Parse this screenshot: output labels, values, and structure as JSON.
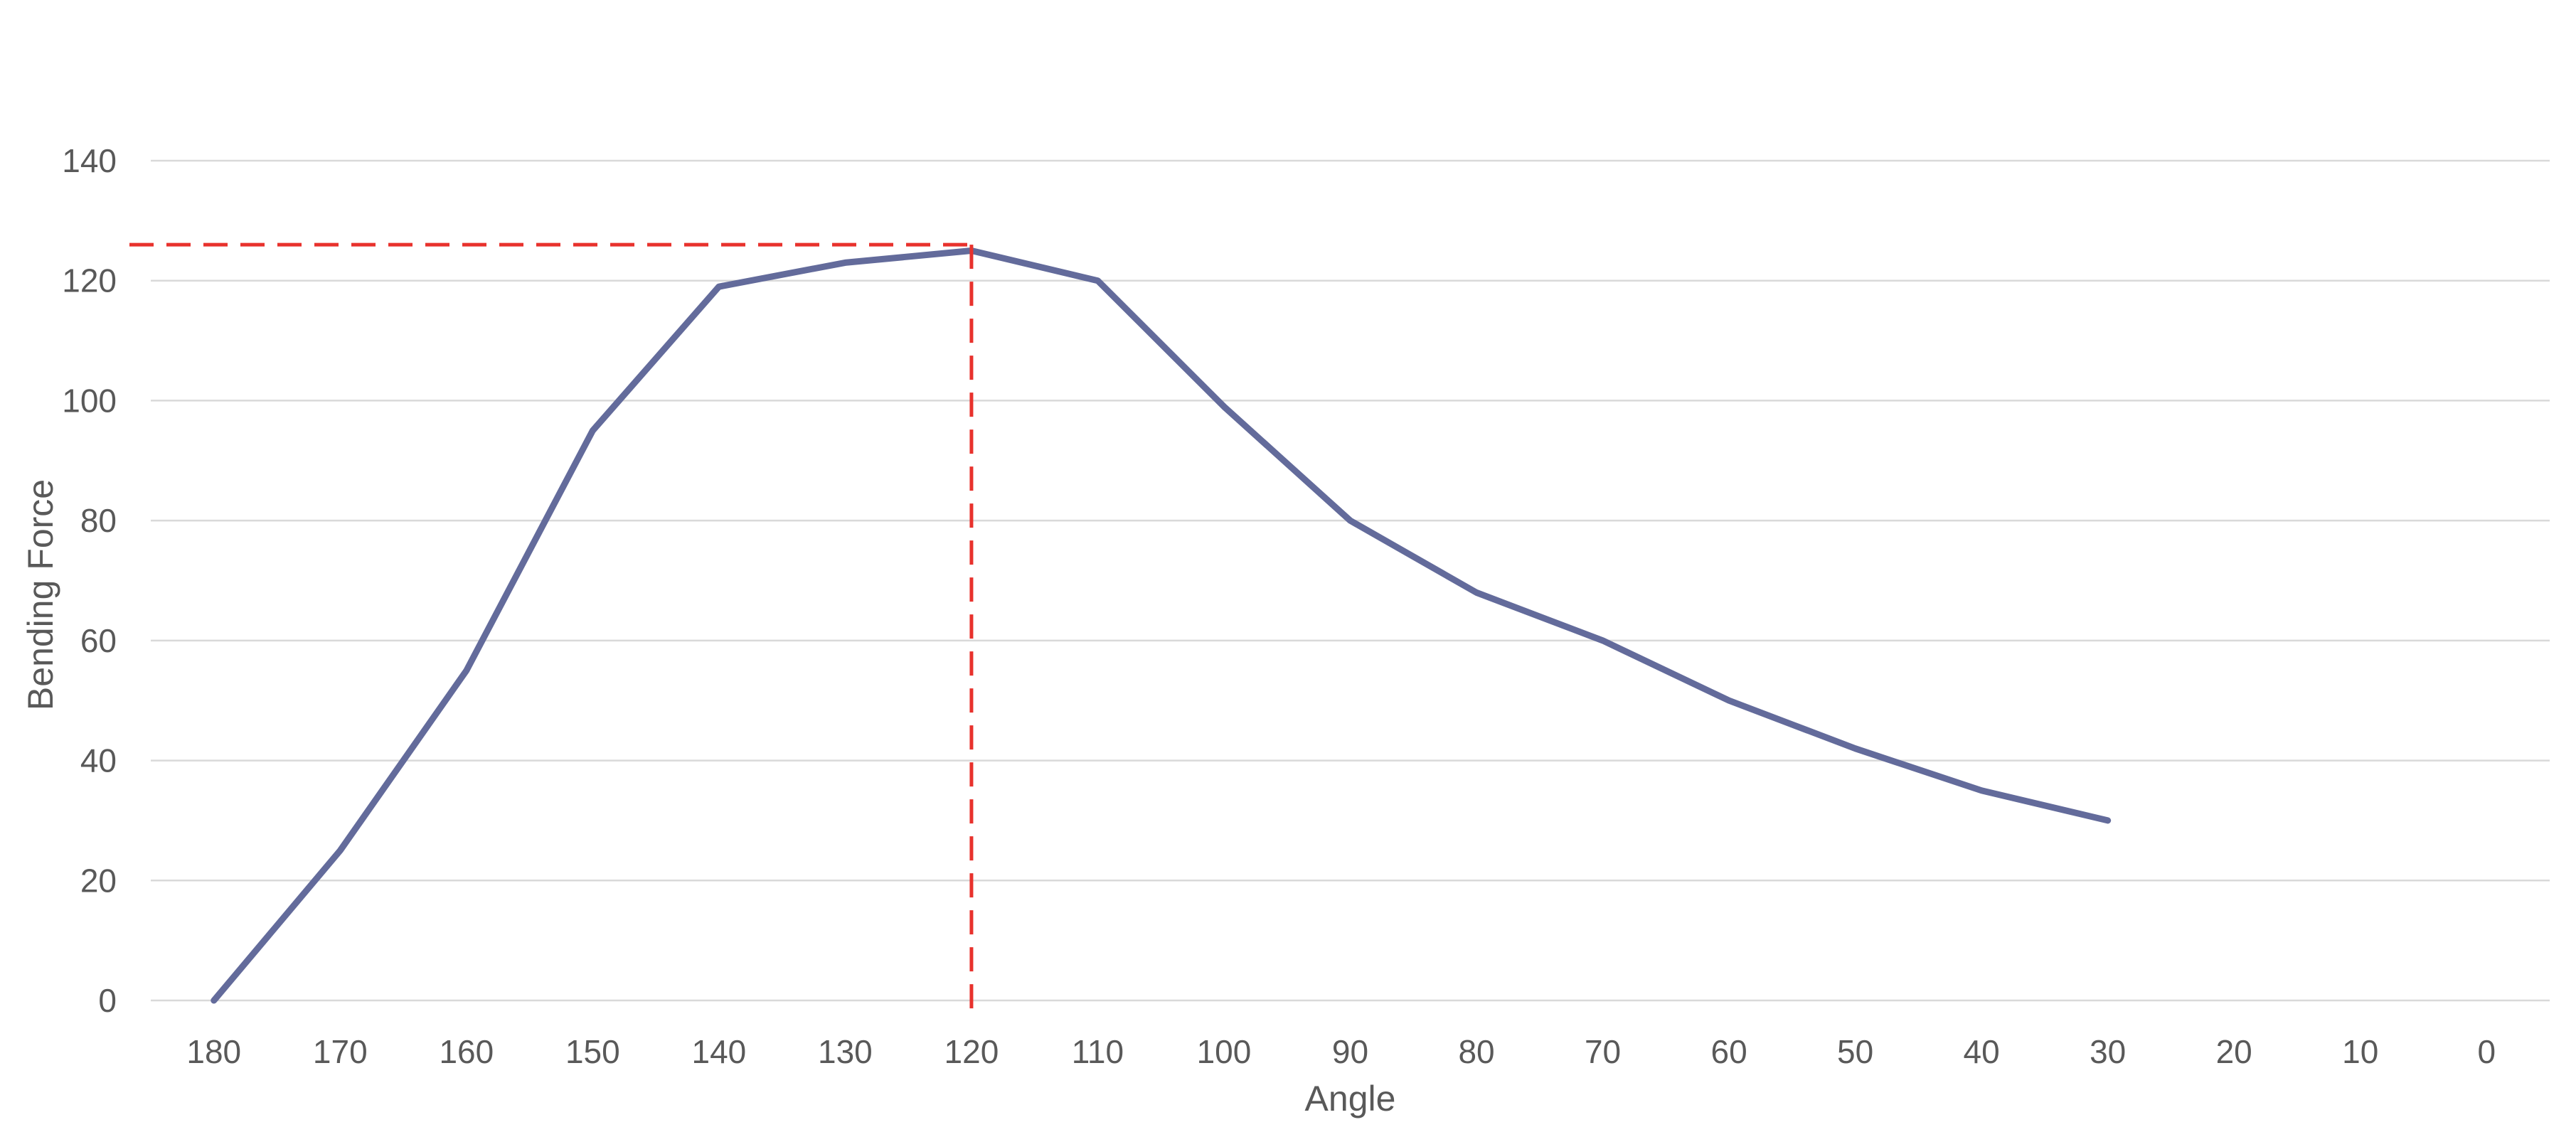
{
  "chart_data": {
    "type": "line",
    "xlabel": "Angle",
    "ylabel": "Bending Force",
    "categories": [
      "180",
      "170",
      "160",
      "150",
      "140",
      "130",
      "120",
      "110",
      "100",
      "90",
      "80",
      "70",
      "60",
      "50",
      "40",
      "30",
      "20",
      "10",
      "0"
    ],
    "series": [
      {
        "values": [
          0,
          25,
          55,
          95,
          119,
          123,
          125,
          120,
          99,
          80,
          68,
          60,
          50,
          42,
          35,
          30,
          null,
          null,
          null
        ],
        "color": "#636b9b"
      }
    ],
    "ylim": [
      0,
      140
    ],
    "yticks": [
      0,
      20,
      40,
      60,
      80,
      100,
      120,
      140
    ],
    "grid": "horizontal",
    "legend": "none",
    "annotations": [
      {
        "type": "dashed-crosshair",
        "x": "120",
        "y": 126,
        "color": "#e8322d"
      }
    ]
  }
}
